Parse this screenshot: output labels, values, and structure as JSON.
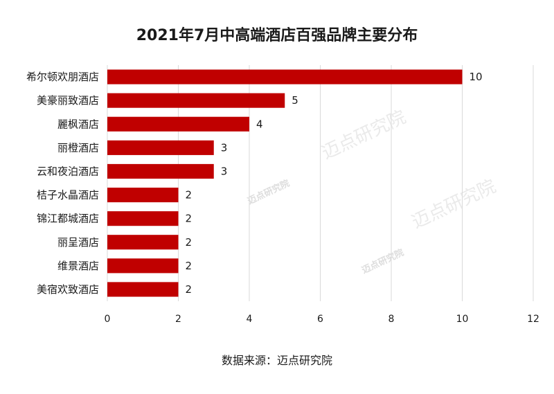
{
  "chart_data": {
    "type": "bar",
    "orientation": "horizontal",
    "title": "2021年7月中高端酒店百强品牌主要分布",
    "categories": [
      "希尔顿欢朋酒店",
      "美豪丽致酒店",
      "麗枫酒店",
      "丽橙酒店",
      "云和夜泊酒店",
      "桔子水晶酒店",
      "锦江都城酒店",
      "丽呈酒店",
      "维景酒店",
      "美宿欢致酒店"
    ],
    "values": [
      10,
      5,
      4,
      3,
      3,
      2,
      2,
      2,
      2,
      2
    ],
    "xlim": [
      0,
      12
    ],
    "xticks": [
      0,
      2,
      4,
      6,
      8,
      10,
      12
    ],
    "grid": "vertical",
    "bar_color": "#c00000",
    "source": "数据来源：迈点研究院"
  },
  "watermark": {
    "text": "迈点研究院"
  }
}
